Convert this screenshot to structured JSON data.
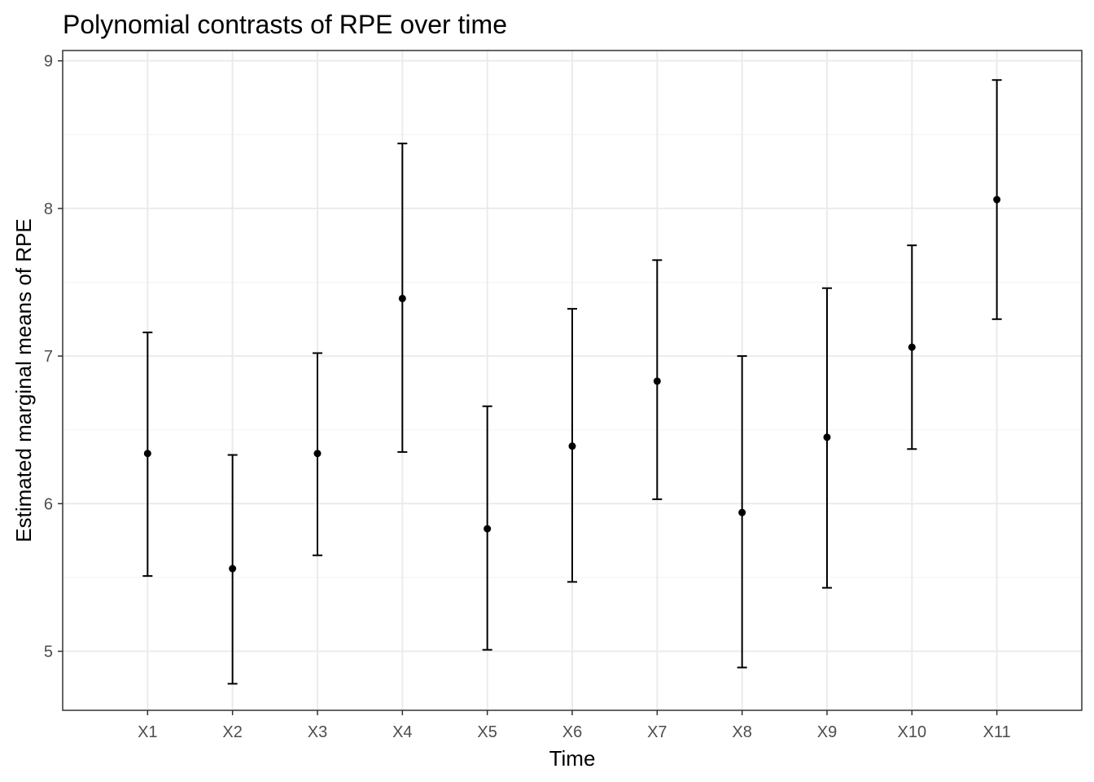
{
  "chart_data": {
    "type": "errorbar",
    "title": "Polynomial contrasts of RPE over time",
    "xlabel": "Time",
    "ylabel": "Estimated marginal means of RPE",
    "categories": [
      "X1",
      "X2",
      "X3",
      "X4",
      "X5",
      "X6",
      "X7",
      "X8",
      "X9",
      "X10",
      "X11"
    ],
    "means": [
      6.34,
      5.56,
      6.34,
      7.39,
      5.83,
      6.39,
      6.83,
      5.94,
      6.45,
      7.06,
      8.06
    ],
    "lower": [
      5.51,
      4.78,
      5.65,
      6.35,
      5.01,
      5.47,
      6.03,
      4.89,
      5.43,
      6.37,
      7.25
    ],
    "upper": [
      7.16,
      6.33,
      7.02,
      8.44,
      6.66,
      7.32,
      7.65,
      7.0,
      7.46,
      7.75,
      8.87
    ],
    "ylim": [
      4.6,
      9.07
    ],
    "yticks": [
      5,
      6,
      7,
      8,
      9
    ],
    "grid": true,
    "theme": "bw",
    "colors": {
      "points": "#000000",
      "grid": "#ebebeb",
      "border": "#333333",
      "tick_labels": "#4d4d4d"
    }
  }
}
